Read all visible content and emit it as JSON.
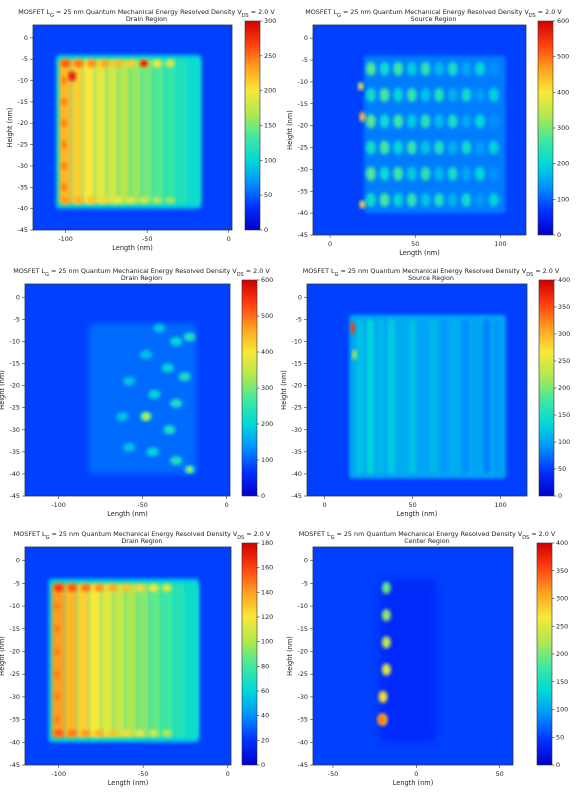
{
  "colors": {
    "cmap": [
      "#0000c8",
      "#0030ff",
      "#0090ff",
      "#00d8d8",
      "#40e8a0",
      "#b0e850",
      "#f8e838",
      "#ffa020",
      "#ff4010",
      "#d00000"
    ],
    "frame": "#333333"
  },
  "chart_data": [
    {
      "type": "heatmap",
      "title_main": "MOSFET L",
      "title_sub1": "G",
      "title_mid": " = 25 nm Quantum Mechanical Energy Resolved Density V",
      "title_sub2": "DS",
      "title_tail": " = 2.0 V",
      "subtitle": "Drain Region",
      "xlabel": "Length (nm)",
      "ylabel": "Height (nm)",
      "xlim": [
        -120,
        2
      ],
      "ylim": [
        -45,
        3
      ],
      "xticks": [
        -100,
        -50,
        0
      ],
      "yticks": [
        0,
        -5,
        -10,
        -15,
        -20,
        -25,
        -30,
        -35,
        -40,
        -45
      ],
      "colorbar": {
        "min": 0,
        "max": 300,
        "ticks": [
          0,
          50,
          100,
          150,
          200,
          250,
          300
        ]
      },
      "pattern": "drain_uniform",
      "peak_value": 300
    },
    {
      "type": "heatmap",
      "title_main": "MOSFET L",
      "title_sub1": "G",
      "title_mid": " = 25 nm Quantum Mechanical Energy Resolved Density V",
      "title_sub2": "DS",
      "title_tail": " = 2.0 V",
      "subtitle": "Source Region",
      "xlabel": "Length (nm)",
      "ylabel": "Height (nm)",
      "xlim": [
        -10,
        115
      ],
      "ylim": [
        -45,
        3
      ],
      "xticks": [
        0,
        50,
        100
      ],
      "yticks": [
        0,
        -5,
        -10,
        -15,
        -20,
        -25,
        -30,
        -35,
        -40,
        -45
      ],
      "colorbar": {
        "min": 0,
        "max": 600,
        "ticks": [
          0,
          100,
          200,
          300,
          400,
          500,
          600
        ]
      },
      "pattern": "source_fringes",
      "peak_value": 600
    },
    {
      "type": "heatmap",
      "title_main": "MOSFET L",
      "title_sub1": "G",
      "title_mid": " = 25 nm Quantum Mechanical Energy Resolved Density V",
      "title_sub2": "DS",
      "title_tail": " = 2.0 V",
      "subtitle": "Drain Region",
      "xlabel": "Length (nm)",
      "ylabel": "Height (nm)",
      "xlim": [
        -120,
        2
      ],
      "ylim": [
        -45,
        3
      ],
      "xticks": [
        -100,
        -50,
        0
      ],
      "yticks": [
        0,
        -5,
        -10,
        -15,
        -20,
        -25,
        -30,
        -35,
        -40,
        -45
      ],
      "colorbar": {
        "min": 0,
        "max": 600,
        "ticks": [
          0,
          100,
          200,
          300,
          400,
          500,
          600
        ]
      },
      "pattern": "drain_arc",
      "peak_value": 600
    },
    {
      "type": "heatmap",
      "title_main": "MOSFET L",
      "title_sub1": "G",
      "title_mid": " = 25 nm Quantum Mechanical Energy Resolved Density V",
      "title_sub2": "DS",
      "title_tail": " = 2.0 V",
      "subtitle": "Source Region",
      "xlabel": "Length (nm)",
      "ylabel": "Height (nm)",
      "xlim": [
        -10,
        115
      ],
      "ylim": [
        -45,
        3
      ],
      "xticks": [
        0,
        50,
        100
      ],
      "yticks": [
        0,
        -5,
        -10,
        -15,
        -20,
        -25,
        -30,
        -35,
        -40,
        -45
      ],
      "colorbar": {
        "min": 0,
        "max": 400,
        "ticks": [
          0,
          50,
          100,
          150,
          200,
          250,
          300,
          350,
          400
        ]
      },
      "pattern": "source_edge",
      "peak_value": 400
    },
    {
      "type": "heatmap",
      "title_main": "MOSFET L",
      "title_sub1": "G",
      "title_mid": " = 25 nm Quantum Mechanical Energy Resolved Density V",
      "title_sub2": "DS",
      "title_tail": " = 2.0 V",
      "subtitle": "Drain Region",
      "xlabel": "Length (nm)",
      "ylabel": "Height (nm)",
      "xlim": [
        -120,
        2
      ],
      "ylim": [
        -45,
        3
      ],
      "xticks": [
        -100,
        -50,
        0
      ],
      "yticks": [
        0,
        -5,
        -10,
        -15,
        -20,
        -25,
        -30,
        -35,
        -40,
        -45
      ],
      "colorbar": {
        "min": 0,
        "max": 180,
        "ticks": [
          0,
          20,
          40,
          60,
          80,
          100,
          120,
          140,
          160,
          180
        ]
      },
      "pattern": "drain_uniform_low",
      "peak_value": 180
    },
    {
      "type": "heatmap",
      "title_main": "MOSFET L",
      "title_sub1": "G",
      "title_mid": " = 25 nm Quantum Mechanical Energy Resolved Density V",
      "title_sub2": "DS",
      "title_tail": " = 2.0 V",
      "subtitle": "Center Region",
      "xlabel": "Length (nm)",
      "ylabel": "Height (nm)",
      "xlim": [
        -62,
        58
      ],
      "ylim": [
        -45,
        3
      ],
      "xticks": [
        -50,
        0,
        50
      ],
      "yticks": [
        0,
        -5,
        -10,
        -15,
        -20,
        -25,
        -30,
        -35,
        -40,
        -45
      ],
      "colorbar": {
        "min": 0,
        "max": 400,
        "ticks": [
          0,
          50,
          100,
          150,
          200,
          250,
          300,
          350,
          400
        ]
      },
      "pattern": "center_column",
      "peak_value": 400
    }
  ]
}
